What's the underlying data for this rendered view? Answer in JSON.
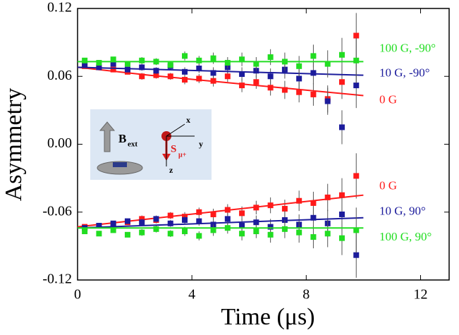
{
  "chart_data": {
    "type": "scatter",
    "xlabel": "Time (μs)",
    "ylabel": "Asymmetry",
    "xlim": [
      0,
      13
    ],
    "xticks": [
      0,
      4,
      8,
      12
    ],
    "ylim": [
      -0.12,
      0.12
    ],
    "yticks": [
      -0.12,
      -0.06,
      {
        "value": 0,
        "label": "0.00"
      },
      0.06,
      0.12
    ],
    "x": [
      0.25,
      0.75,
      1.25,
      1.75,
      2.25,
      2.75,
      3.25,
      3.75,
      4.25,
      4.75,
      5.25,
      5.75,
      6.25,
      6.75,
      7.25,
      7.75,
      8.25,
      8.75,
      9.25,
      9.75
    ],
    "inset_labels": [
      "B",
      "ext",
      "S",
      "μ+",
      "x",
      "y",
      "z"
    ],
    "series": [
      {
        "name": "0 G",
        "color": "#ff1a1a",
        "values": [
          0.069,
          0.068,
          0.066,
          0.064,
          0.06,
          0.061,
          0.06,
          0.057,
          0.058,
          0.056,
          0.06,
          0.052,
          0.055,
          0.05,
          0.048,
          0.046,
          0.044,
          0.04,
          0.055,
          0.096
        ],
        "errors": [
          0.002,
          0.002,
          0.002,
          0.002,
          0.003,
          0.003,
          0.003,
          0.004,
          0.004,
          0.005,
          0.005,
          0.006,
          0.006,
          0.007,
          0.008,
          0.009,
          0.01,
          0.012,
          0.015,
          0.02
        ],
        "fit_x": [
          0,
          2.5,
          5,
          7.5,
          10
        ],
        "fit_values": [
          0.068,
          0.061,
          0.055,
          0.049,
          0.043
        ]
      },
      {
        "name": "10 G, -90°",
        "color": "#1c1c9c",
        "values": [
          0.07,
          0.068,
          0.071,
          0.066,
          0.068,
          0.065,
          0.069,
          0.064,
          0.067,
          0.063,
          0.068,
          0.062,
          0.065,
          0.06,
          0.066,
          0.058,
          0.063,
          0.038,
          0.015,
          0.052
        ],
        "errors": [
          0.002,
          0.002,
          0.002,
          0.002,
          0.003,
          0.003,
          0.003,
          0.004,
          0.004,
          0.005,
          0.005,
          0.006,
          0.006,
          0.007,
          0.008,
          0.009,
          0.01,
          0.012,
          0.015,
          0.02
        ],
        "fit_x": [
          0,
          10
        ],
        "fit_values": [
          0.068,
          0.061
        ]
      },
      {
        "name": "100 G, -90°",
        "color": "#22dd22",
        "values": [
          0.074,
          0.072,
          0.075,
          0.071,
          0.074,
          0.073,
          0.07,
          0.078,
          0.074,
          0.076,
          0.072,
          0.075,
          0.071,
          0.077,
          0.073,
          0.069,
          0.078,
          0.071,
          0.079,
          0.074
        ],
        "errors": [
          0.002,
          0.002,
          0.002,
          0.002,
          0.003,
          0.003,
          0.003,
          0.004,
          0.004,
          0.005,
          0.005,
          0.006,
          0.006,
          0.007,
          0.008,
          0.009,
          0.01,
          0.012,
          0.015,
          0.02
        ],
        "fit_x": [
          0,
          10
        ],
        "fit_values": [
          0.073,
          0.073
        ]
      },
      {
        "name": "0 G",
        "color": "#ff1a1a",
        "values": [
          -0.073,
          -0.072,
          -0.071,
          -0.069,
          -0.066,
          -0.067,
          -0.063,
          -0.064,
          -0.06,
          -0.062,
          -0.058,
          -0.061,
          -0.056,
          -0.054,
          -0.057,
          -0.05,
          -0.052,
          -0.047,
          -0.045,
          -0.028
        ],
        "errors": [
          0.002,
          0.002,
          0.002,
          0.002,
          0.003,
          0.003,
          0.003,
          0.004,
          0.004,
          0.005,
          0.005,
          0.006,
          0.006,
          0.007,
          0.008,
          0.009,
          0.01,
          0.012,
          0.015,
          0.02
        ],
        "fit_x": [
          0,
          2.5,
          5,
          7.5,
          10
        ],
        "fit_values": [
          -0.073,
          -0.066,
          -0.059,
          -0.052,
          -0.045
        ]
      },
      {
        "name": "10 G, 90°",
        "color": "#1c1c9c",
        "values": [
          -0.074,
          -0.072,
          -0.07,
          -0.068,
          -0.069,
          -0.066,
          -0.07,
          -0.067,
          -0.068,
          -0.071,
          -0.066,
          -0.072,
          -0.069,
          -0.073,
          -0.067,
          -0.071,
          -0.065,
          -0.07,
          -0.062,
          -0.098
        ],
        "errors": [
          0.002,
          0.002,
          0.002,
          0.002,
          0.003,
          0.003,
          0.003,
          0.004,
          0.004,
          0.005,
          0.005,
          0.006,
          0.006,
          0.007,
          0.008,
          0.009,
          0.01,
          0.012,
          0.015,
          0.02
        ],
        "fit_x": [
          0,
          10
        ],
        "fit_values": [
          -0.074,
          -0.065
        ]
      },
      {
        "name": "100 G, 90°",
        "color": "#22dd22",
        "values": [
          -0.077,
          -0.079,
          -0.076,
          -0.08,
          -0.078,
          -0.075,
          -0.079,
          -0.077,
          -0.081,
          -0.076,
          -0.074,
          -0.079,
          -0.077,
          -0.08,
          -0.075,
          -0.078,
          -0.082,
          -0.079,
          -0.083,
          -0.076
        ],
        "errors": [
          0.002,
          0.002,
          0.002,
          0.002,
          0.003,
          0.003,
          0.003,
          0.004,
          0.004,
          0.005,
          0.005,
          0.006,
          0.006,
          0.007,
          0.008,
          0.009,
          0.01,
          0.012,
          0.015,
          0.02
        ],
        "fit_x": [
          0,
          10
        ],
        "fit_values": [
          -0.074,
          -0.074
        ]
      }
    ]
  }
}
